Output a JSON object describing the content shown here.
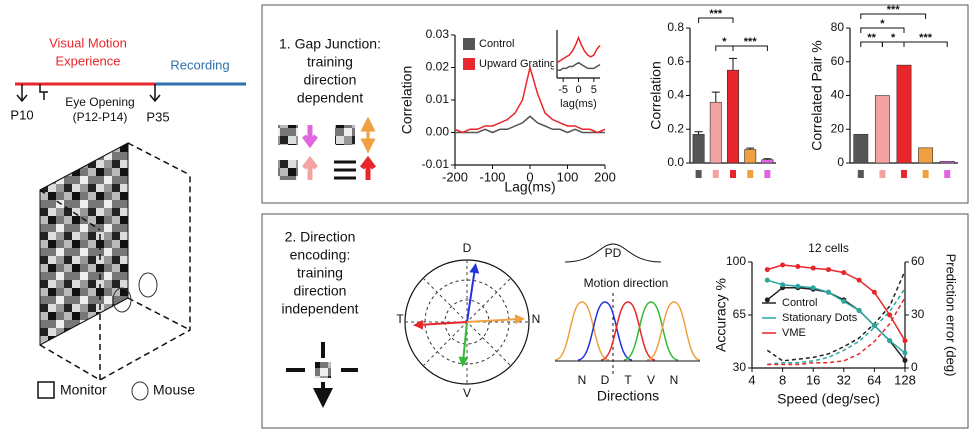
{
  "timeline": {
    "phases": [
      "Visual Motion",
      "Experience",
      "Recording"
    ],
    "markers": [
      "P10",
      "Eye Opening",
      "(P12-P14)",
      "P35"
    ]
  },
  "setup_legend": [
    "Monitor",
    "Mouse"
  ],
  "panels": [
    {
      "title_lines": [
        "1. Gap Junction:",
        "training",
        "direction",
        "dependent"
      ]
    },
    {
      "title_lines": [
        "2. Direction",
        "encoding:",
        "training",
        "direction",
        "independent"
      ]
    }
  ],
  "polar": {
    "labels": [
      "D",
      "T",
      "N",
      "V"
    ]
  },
  "tuning": {
    "title": "PD",
    "subtitle": "Motion direction",
    "directions": [
      "N",
      "D",
      "T",
      "V",
      "N"
    ],
    "xlabel": "Directions"
  },
  "chart_data": [
    {
      "type": "line",
      "ylabel": "Correlation",
      "xlabel": "Lag(ms)",
      "x": [
        -200,
        -180,
        -160,
        -140,
        -120,
        -100,
        -80,
        -60,
        -40,
        -20,
        0,
        20,
        40,
        60,
        80,
        100,
        120,
        140,
        160,
        180,
        200
      ],
      "xlim": [
        -200,
        200
      ],
      "xticks": [
        -200,
        -100,
        0,
        100,
        200
      ],
      "ylim": [
        -0.01,
        0.03
      ],
      "yticks": [
        -0.01,
        {
          "value": 0,
          "label": "0.00"
        },
        0.01,
        0.02,
        0.03
      ],
      "series": [
        {
          "name": "Control",
          "color": "#555555",
          "values": [
            0,
            0,
            0,
            0,
            0.001,
            0,
            0.001,
            0.001,
            0.002,
            0.003,
            0.005,
            0.003,
            0.002,
            0.001,
            0.001,
            0,
            0.001,
            0,
            0,
            0,
            0
          ]
        },
        {
          "name": "Upward Gratings",
          "color": "#e8262b",
          "values": [
            0.001,
            0,
            0.001,
            0.001,
            0.002,
            0.002,
            0.003,
            0.004,
            0.006,
            0.01,
            0.02,
            0.012,
            0.006,
            0.004,
            0.003,
            0.002,
            0.002,
            0.001,
            0.001,
            0,
            0.001
          ]
        }
      ]
    },
    {
      "type": "line",
      "xlabel": "lag(ms)",
      "x": [
        -7,
        -6,
        -5,
        -4,
        -3,
        -2,
        -1,
        0,
        1,
        2,
        3,
        4,
        5,
        6,
        7
      ],
      "xlim": [
        -7,
        7
      ],
      "xticks": [
        -5,
        0,
        5
      ],
      "ylim": [
        0,
        0.025
      ],
      "series": [
        {
          "color": "#e8262b",
          "values": [
            0.008,
            0.009,
            0.01,
            0.011,
            0.012,
            0.014,
            0.017,
            0.021,
            0.017,
            0.014,
            0.012,
            0.011,
            0.012,
            0.015,
            0.017
          ]
        },
        {
          "color": "#555555",
          "values": [
            0.004,
            0.004,
            0.005,
            0.005,
            0.006,
            0.006,
            0.007,
            0.008,
            0.007,
            0.006,
            0.005,
            0.005,
            0.005,
            0.006,
            0.007
          ]
        }
      ]
    },
    {
      "type": "bar",
      "ylabel": "Correlation",
      "categories": [
        null,
        null,
        null,
        null,
        null
      ],
      "values": [
        0.17,
        0.36,
        0.55,
        0.08,
        0.02
      ],
      "errors": [
        0.015,
        0.06,
        0.07,
        0.008,
        0.005
      ],
      "colors": [
        "#555555",
        "#f4a3a3",
        "#e8262b",
        "#f0a040",
        "#e066e0"
      ],
      "ylim": [
        0,
        0.8
      ],
      "yticks": [
        {
          "value": 0,
          "label": "0.0"
        },
        0.2,
        0.4,
        0.6,
        0.8
      ],
      "annotations": [
        "***",
        "*",
        "***"
      ]
    },
    {
      "type": "bar",
      "ylabel": "Correlated Pair %",
      "categories": [
        null,
        null,
        null,
        null,
        null
      ],
      "values": [
        17,
        40,
        58,
        9,
        1
      ],
      "colors": [
        "#555555",
        "#f4a3a3",
        "#e8262b",
        "#f0a040",
        "#e066e0"
      ],
      "ylim": [
        0,
        80
      ],
      "yticks": [
        0,
        20,
        40,
        60,
        80
      ],
      "annotations": [
        "***",
        "**",
        "*",
        "*",
        "***"
      ]
    },
    {
      "type": "line",
      "title": "12 cells",
      "xlabel": "Speed (deg/sec)",
      "ylabel": "Accuracy %",
      "y2label": "Prediction error (deg)",
      "xscale": "log",
      "markers": true,
      "legend": "center left",
      "x": [
        5.66,
        8,
        11.3,
        16,
        22.6,
        32,
        45.3,
        64,
        90.5,
        128
      ],
      "xlim": [
        4,
        128
      ],
      "xticks": [
        4,
        8,
        16,
        32,
        64,
        128
      ],
      "ylim": [
        30,
        100
      ],
      "yticks": [
        30,
        65,
        100
      ],
      "y2lim": [
        0,
        60
      ],
      "y2ticks": [
        0,
        30,
        60
      ],
      "series": [
        {
          "name": "Control",
          "color": "#222222",
          "values": [
            75,
            83,
            83,
            82,
            80,
            75,
            68,
            58,
            48,
            35
          ],
          "y2_values": [
            10,
            4,
            5,
            6,
            8,
            12,
            17,
            25,
            35,
            55
          ]
        },
        {
          "name": "Stationary Dots",
          "color": "#2aa8a0",
          "values": [
            88,
            85,
            84,
            83,
            80,
            74,
            68,
            58,
            48,
            40
          ],
          "y2_values": [
            2,
            3,
            3,
            4,
            6,
            10,
            15,
            23,
            32,
            45
          ]
        },
        {
          "name": "VME",
          "color": "#e8262b",
          "values": [
            95,
            98,
            97,
            96,
            95,
            93,
            88,
            80,
            65,
            48
          ],
          "y2_values": [
            2,
            2,
            2,
            3,
            3,
            4,
            8,
            15,
            25,
            40
          ]
        }
      ]
    }
  ]
}
